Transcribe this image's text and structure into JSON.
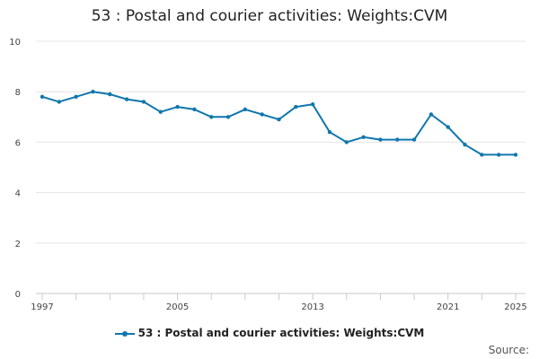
{
  "chart_data": {
    "type": "line",
    "title": "53 : Postal and courier activities: Weights:CVM",
    "xlabel": "",
    "ylabel": "",
    "x": [
      1997,
      1998,
      1999,
      2000,
      2001,
      2002,
      2003,
      2004,
      2005,
      2006,
      2007,
      2008,
      2009,
      2010,
      2011,
      2012,
      2013,
      2014,
      2015,
      2016,
      2017,
      2018,
      2019,
      2020,
      2021,
      2022,
      2023,
      2024,
      2025
    ],
    "x_tick_labels": [
      "1997",
      "2005",
      "2013",
      "2021",
      "2025"
    ],
    "y_tick_labels": [
      "0",
      "2",
      "4",
      "6",
      "8",
      "10"
    ],
    "ylim": [
      0,
      10
    ],
    "xlim": [
      1997,
      2025
    ],
    "grid": true,
    "legend_placement": "bottom",
    "series": [
      {
        "name": "53 : Postal and courier activities: Weights:CVM",
        "color": "#1077ad",
        "values": [
          7.8,
          7.6,
          7.8,
          8.0,
          7.9,
          7.7,
          7.6,
          7.2,
          7.4,
          7.3,
          7.0,
          7.0,
          7.3,
          7.1,
          6.9,
          7.4,
          7.5,
          6.4,
          6.0,
          6.2,
          6.1,
          6.1,
          6.1,
          7.1,
          6.6,
          5.9,
          5.5,
          5.5,
          5.5
        ]
      }
    ]
  },
  "legend": {
    "label": "53 : Postal and courier activities: Weights:CVM"
  },
  "footer": {
    "source_label": "Source:"
  }
}
